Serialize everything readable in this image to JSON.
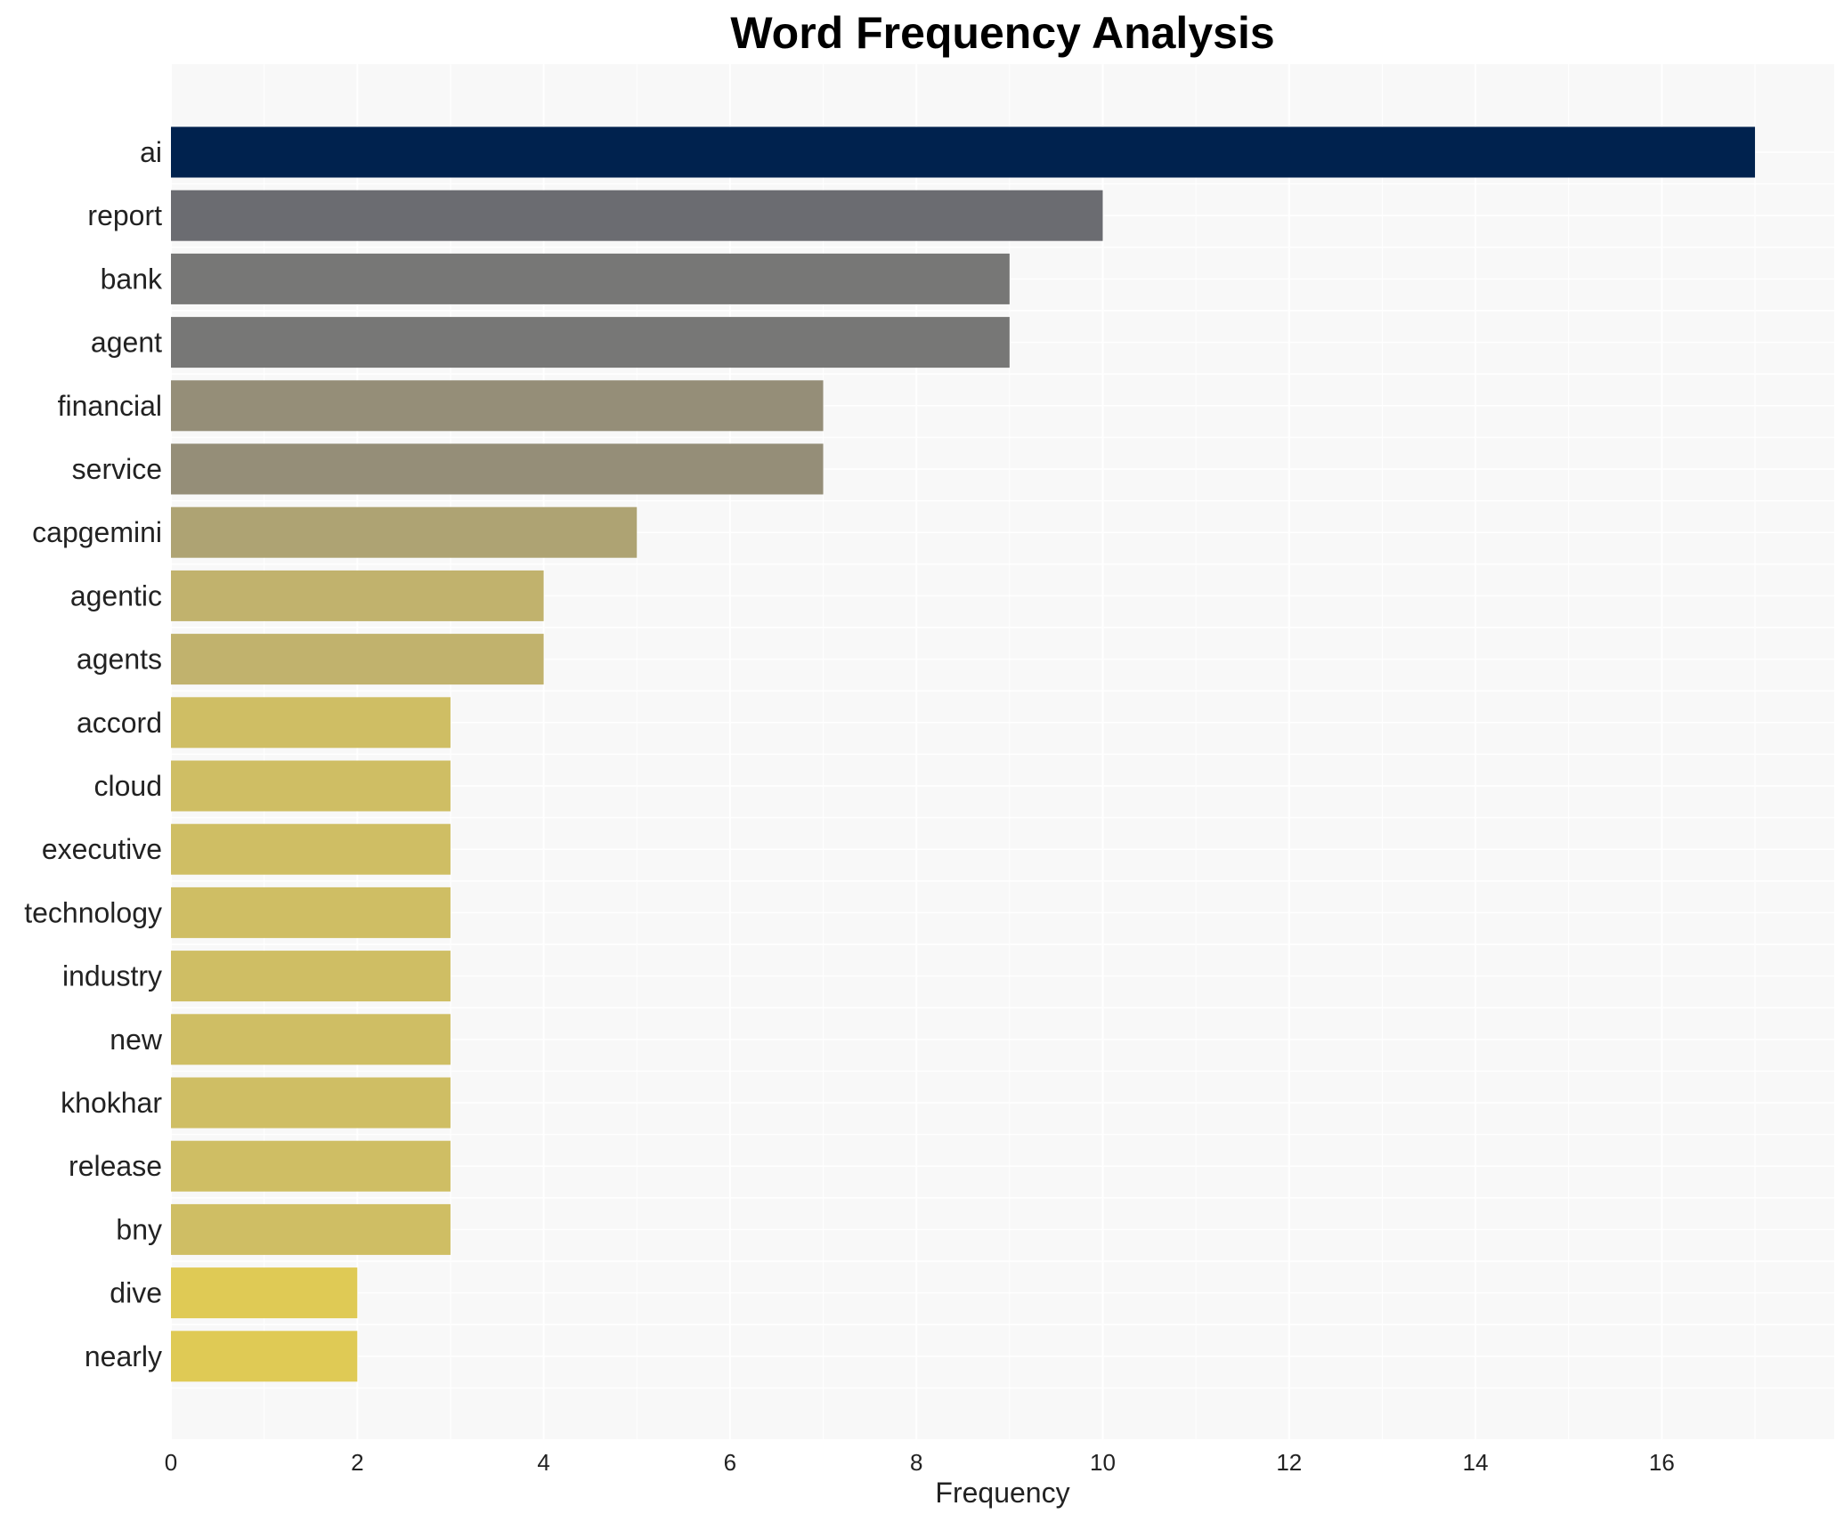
{
  "chart_data": {
    "type": "bar",
    "orientation": "horizontal",
    "title": "Word Frequency Analysis",
    "xlabel": "Frequency",
    "ylabel": "",
    "xlim": [
      0,
      17.85
    ],
    "xticks": [
      0,
      2,
      4,
      6,
      8,
      10,
      12,
      14,
      16
    ],
    "grid": true,
    "categories": [
      "ai",
      "report",
      "bank",
      "agent",
      "financial",
      "service",
      "capgemini",
      "agentic",
      "agents",
      "accord",
      "cloud",
      "executive",
      "technology",
      "industry",
      "new",
      "khokhar",
      "release",
      "bny",
      "dive",
      "nearly"
    ],
    "values": [
      17,
      10,
      9,
      9,
      7,
      7,
      5,
      4,
      4,
      3,
      3,
      3,
      3,
      3,
      3,
      3,
      3,
      3,
      2,
      2
    ],
    "colors": [
      "#00224e",
      "#6b6c71",
      "#777776",
      "#777776",
      "#958e78",
      "#958e78",
      "#aea373",
      "#c1b26d",
      "#c1b26d",
      "#cfbe64",
      "#cfbe64",
      "#cfbe64",
      "#cfbe64",
      "#cfbe64",
      "#cfbe64",
      "#cfbe64",
      "#cfbe64",
      "#cfbe64",
      "#dfca55",
      "#dfca55"
    ],
    "background": "#f8f8f8"
  }
}
